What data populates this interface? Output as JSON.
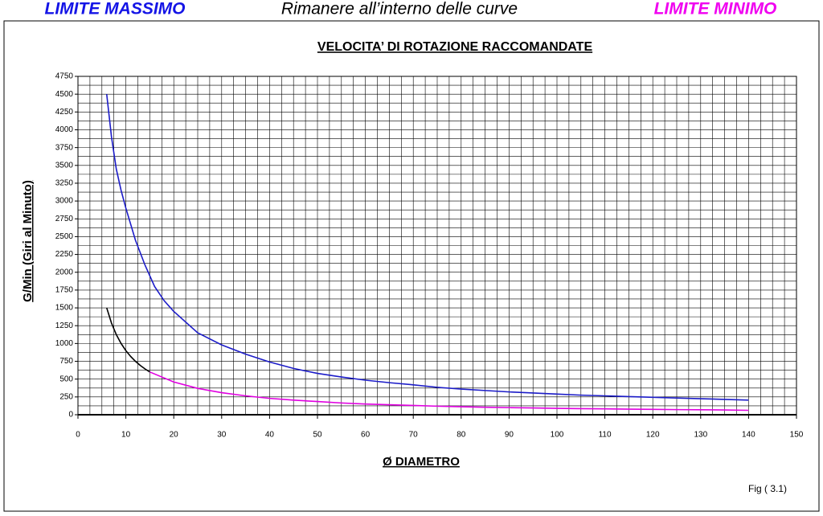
{
  "header": {
    "center": "Rimanere all’interno delle curve"
  },
  "chart_data": {
    "type": "line",
    "title": "VELOCITA’  DI ROTAZIONE RACCOMANDATE",
    "x_label": "Ø DIAMETRO",
    "y_label": "G/Min   (Giri al Minuto)",
    "note": "Fig ( 3.1)",
    "xlim": [
      0,
      150
    ],
    "xticks": [
      0,
      10,
      20,
      30,
      40,
      50,
      60,
      70,
      80,
      90,
      100,
      110,
      120,
      130,
      140,
      150
    ],
    "ylim": [
      0,
      4750
    ],
    "yticks": [
      0,
      250,
      500,
      750,
      1000,
      1250,
      1500,
      1750,
      2000,
      2250,
      2500,
      2750,
      3000,
      3250,
      3500,
      3750,
      4000,
      4250,
      4500,
      4750
    ],
    "grid": true,
    "x_minor_step": 2.5,
    "y_minor_step": 125,
    "series": [
      {
        "name": "LIMITE MASSIMO",
        "color": "#1c1cc8",
        "x": [
          6,
          7,
          8,
          9,
          10,
          12,
          14,
          16,
          18,
          20,
          25,
          30,
          35,
          40,
          45,
          50,
          55,
          60,
          65,
          70,
          75,
          80,
          85,
          90,
          95,
          100,
          105,
          110,
          115,
          120,
          125,
          130,
          135,
          140
        ],
        "values": [
          4500,
          3900,
          3450,
          3150,
          2900,
          2450,
          2100,
          1800,
          1600,
          1450,
          1150,
          980,
          850,
          740,
          650,
          580,
          530,
          485,
          450,
          420,
          385,
          360,
          340,
          320,
          305,
          290,
          275,
          265,
          255,
          245,
          235,
          225,
          215,
          205
        ]
      },
      {
        "color": "#000000",
        "x": [
          6,
          7,
          8,
          9,
          10,
          11,
          12,
          13,
          14,
          15
        ],
        "values": [
          1500,
          1286,
          1125,
          1000,
          900,
          818,
          750,
          692,
          643,
          600
        ]
      },
      {
        "name": "LIMITE MINIMO",
        "color": "#e000e0",
        "x": [
          15,
          20,
          25,
          30,
          35,
          40,
          45,
          50,
          55,
          60,
          65,
          70,
          75,
          80,
          85,
          90,
          95,
          100,
          105,
          110,
          115,
          120,
          125,
          130,
          135,
          140
        ],
        "values": [
          600,
          460,
          370,
          310,
          265,
          230,
          205,
          185,
          165,
          150,
          140,
          130,
          120,
          112,
          105,
          100,
          95,
          90,
          85,
          82,
          78,
          75,
          72,
          70,
          67,
          62
        ]
      }
    ]
  }
}
